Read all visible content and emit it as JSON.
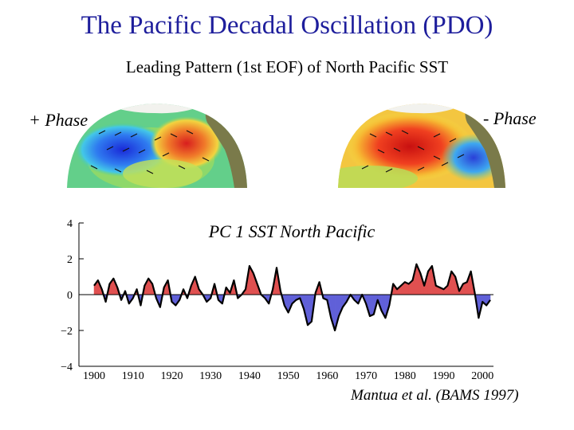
{
  "header": {
    "title": "The Pacific Decadal Oscillation (PDO)",
    "subtitle": "Leading Pattern (1st EOF) of North Pacific SST"
  },
  "maps": {
    "positive_label": "+ Phase",
    "negative_label": "- Phase"
  },
  "citation": "Mantua et al. (BAMS 1997)",
  "colors": {
    "title": "#1e1e9c",
    "positive_fill": "#e05050",
    "negative_fill": "#6060d8",
    "line": "#000000"
  },
  "chart_data": {
    "type": "area",
    "title": "PC 1 SST North Pacific",
    "xlabel": "",
    "ylabel": "",
    "xlim": [
      1900,
      2002
    ],
    "ylim": [
      -4,
      4
    ],
    "x_ticks": [
      "1900",
      "1910",
      "1920",
      "1930",
      "1940",
      "1950",
      "1960",
      "1970",
      "1980",
      "1990",
      "2000"
    ],
    "y_ticks": [
      "4",
      "2",
      "0",
      "−2",
      "−4"
    ],
    "series": [
      {
        "x": [
          1900,
          1901,
          1902,
          1903,
          1904,
          1905,
          1906,
          1907,
          1908,
          1909,
          1910,
          1911,
          1912,
          1913,
          1914,
          1915,
          1916,
          1917,
          1918,
          1919,
          1920,
          1921,
          1922,
          1923,
          1924,
          1925,
          1926,
          1927,
          1928,
          1929,
          1930,
          1931,
          1932,
          1933,
          1934,
          1935,
          1936,
          1937,
          1938,
          1939,
          1940,
          1941,
          1942,
          1943,
          1944,
          1945,
          1946,
          1947,
          1948,
          1949,
          1950,
          1951,
          1952,
          1953,
          1954,
          1955,
          1956,
          1957,
          1958,
          1959,
          1960,
          1961,
          1962,
          1963,
          1964,
          1965,
          1966,
          1967,
          1968,
          1969,
          1970,
          1971,
          1972,
          1973,
          1974,
          1975,
          1976,
          1977,
          1978,
          1979,
          1980,
          1981,
          1982,
          1983,
          1984,
          1985,
          1986,
          1987,
          1988,
          1989,
          1990,
          1991,
          1992,
          1993,
          1994,
          1995,
          1996,
          1997,
          1998,
          1999,
          2000,
          2001,
          2002
        ],
        "values": [
          0.5,
          0.8,
          0.3,
          -0.4,
          0.6,
          0.9,
          0.4,
          -0.3,
          0.2,
          -0.5,
          -0.2,
          0.3,
          -0.6,
          0.5,
          0.9,
          0.6,
          -0.2,
          -0.7,
          0.4,
          0.8,
          -0.4,
          -0.6,
          -0.3,
          0.3,
          -0.2,
          0.5,
          1.0,
          0.3,
          0.0,
          -0.4,
          -0.2,
          0.6,
          -0.3,
          -0.5,
          0.4,
          0.1,
          0.8,
          -0.2,
          0.0,
          0.3,
          1.6,
          1.2,
          0.6,
          0.0,
          -0.2,
          -0.5,
          0.3,
          1.5,
          0.2,
          -0.6,
          -1.0,
          -0.5,
          -0.3,
          -0.2,
          -0.8,
          -1.7,
          -1.5,
          0.1,
          0.7,
          -0.2,
          -0.3,
          -1.3,
          -2.0,
          -1.2,
          -0.7,
          -0.4,
          0.0,
          -0.3,
          -0.5,
          0.0,
          -0.5,
          -1.2,
          -1.1,
          -0.3,
          -0.9,
          -1.3,
          -0.6,
          0.6,
          0.3,
          0.5,
          0.7,
          0.6,
          0.8,
          1.7,
          1.2,
          0.5,
          1.3,
          1.6,
          0.5,
          0.4,
          0.3,
          0.5,
          1.3,
          1.0,
          0.2,
          0.6,
          0.7,
          1.3,
          0.1,
          -1.3,
          -0.4,
          -0.6,
          -0.3
        ]
      }
    ]
  }
}
